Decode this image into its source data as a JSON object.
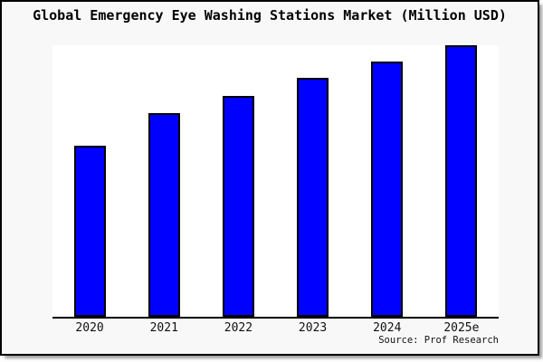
{
  "title": "Global Emergency Eye Washing Stations Market (Million USD)",
  "source": "Source: Prof Research",
  "window": {
    "background": "#f8f8f8",
    "plot_background": "#ffffff",
    "border_color": "#000000",
    "shadow_color": "#9e9e9e"
  },
  "chart_data": {
    "type": "bar",
    "title": "Global Emergency Eye Washing Stations Market (Million USD)",
    "categories": [
      "2020",
      "2021",
      "2022",
      "2023",
      "2024",
      "2025e"
    ],
    "values": [
      63,
      75,
      81.5,
      88,
      94,
      100
    ],
    "values_note": "relative bar heights, percent of tallest bar (no y-axis scale shown)",
    "xlabel": "",
    "ylabel": "",
    "ylim": [
      0,
      100
    ],
    "grid": false,
    "legend": false,
    "y_axis_ticks_visible": false,
    "bar_color": "#0000ff",
    "bar_border_color": "#000000",
    "annotation": "Source: Prof Research"
  }
}
